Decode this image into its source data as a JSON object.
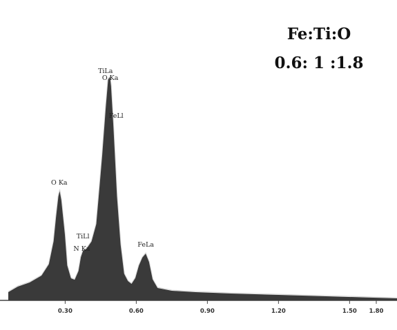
{
  "ratio_box": {
    "formula": "Fe:Ti:O",
    "ratio": "0.6: 1 :1.8"
  },
  "colors": {
    "fill": "#3a3a3a",
    "outline": "#d6d6d6",
    "axis": "#444444"
  },
  "chart_data": {
    "type": "area",
    "title": "",
    "xlabel": "",
    "ylabel": "",
    "xlim": [
      0.06,
      1.7
    ],
    "ylim": [
      0,
      340
    ],
    "x_ticks": [
      {
        "value": 0.3,
        "label": "0.30"
      },
      {
        "value": 0.6,
        "label": "0.60"
      },
      {
        "value": 0.9,
        "label": "0.90"
      },
      {
        "value": 1.2,
        "label": "1.20"
      },
      {
        "value": 1.5,
        "label": "1.50"
      },
      {
        "value": 1.8,
        "label": "1.80"
      }
    ],
    "series": [
      {
        "points": [
          [
            0.06,
            12
          ],
          [
            0.1,
            20
          ],
          [
            0.15,
            26
          ],
          [
            0.2,
            36
          ],
          [
            0.23,
            52
          ],
          [
            0.25,
            85
          ],
          [
            0.26,
            120
          ],
          [
            0.27,
            150
          ],
          [
            0.277,
            160
          ],
          [
            0.285,
            145
          ],
          [
            0.3,
            95
          ],
          [
            0.31,
            50
          ],
          [
            0.325,
            32
          ],
          [
            0.34,
            30
          ],
          [
            0.355,
            42
          ],
          [
            0.365,
            62
          ],
          [
            0.375,
            72
          ],
          [
            0.39,
            75
          ],
          [
            0.41,
            85
          ],
          [
            0.43,
            110
          ],
          [
            0.44,
            150
          ],
          [
            0.455,
            210
          ],
          [
            0.47,
            280
          ],
          [
            0.48,
            320
          ],
          [
            0.49,
            325
          ],
          [
            0.495,
            310
          ],
          [
            0.505,
            250
          ],
          [
            0.52,
            150
          ],
          [
            0.535,
            80
          ],
          [
            0.55,
            38
          ],
          [
            0.565,
            28
          ],
          [
            0.58,
            24
          ],
          [
            0.595,
            32
          ],
          [
            0.61,
            50
          ],
          [
            0.625,
            62
          ],
          [
            0.64,
            68
          ],
          [
            0.655,
            55
          ],
          [
            0.67,
            30
          ],
          [
            0.69,
            18
          ],
          [
            0.75,
            14
          ],
          [
            0.85,
            12
          ],
          [
            1.0,
            10
          ],
          [
            1.2,
            8
          ],
          [
            1.4,
            6
          ],
          [
            1.6,
            4
          ],
          [
            1.7,
            3
          ]
        ]
      }
    ],
    "annotations": [
      {
        "label": "O Ka",
        "x": 0.275,
        "y": 168
      },
      {
        "label": "TiLa",
        "x": 0.47,
        "y": 330
      },
      {
        "label": "O Ka",
        "x": 0.49,
        "y": 320
      },
      {
        "label": "FeLl",
        "x": 0.515,
        "y": 265
      },
      {
        "label": "TiLl",
        "x": 0.375,
        "y": 90
      },
      {
        "label": "N Ka",
        "x": 0.37,
        "y": 72
      },
      {
        "label": "FeLa",
        "x": 0.64,
        "y": 78
      }
    ]
  }
}
